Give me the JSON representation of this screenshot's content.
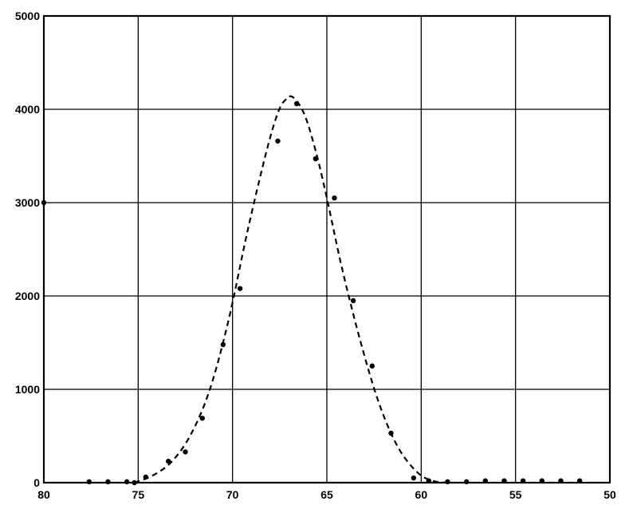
{
  "chart_data": {
    "type": "scatter",
    "title": "",
    "xlabel": "",
    "ylabel": "",
    "xlim": [
      80,
      50
    ],
    "ylim": [
      0,
      5000
    ],
    "x_reversed": true,
    "grid": true,
    "legend": "none",
    "x_ticks": [
      {
        "value": 80,
        "label": "80"
      },
      {
        "value": 75,
        "label": "75"
      },
      {
        "value": 70,
        "label": "70"
      },
      {
        "value": 65,
        "label": "65"
      },
      {
        "value": 60,
        "label": "60"
      },
      {
        "value": 55,
        "label": "55"
      },
      {
        "value": 50,
        "label": "50"
      }
    ],
    "y_ticks": [
      {
        "value": 0,
        "label": "0"
      },
      {
        "value": 1000,
        "label": "1000"
      },
      {
        "value": 2000,
        "label": "2000"
      },
      {
        "value": 3000,
        "label": "3000"
      },
      {
        "value": 4000,
        "label": "4000"
      },
      {
        "value": 5000,
        "label": "5000"
      }
    ],
    "series": [
      {
        "style": "points",
        "color": "#000000",
        "points": [
          {
            "x": 77.6,
            "y": 10
          },
          {
            "x": 76.6,
            "y": 10
          },
          {
            "x": 75.6,
            "y": 10
          },
          {
            "x": 75.2,
            "y": 0
          },
          {
            "x": 74.6,
            "y": 60
          },
          {
            "x": 73.4,
            "y": 230
          },
          {
            "x": 72.5,
            "y": 330
          },
          {
            "x": 71.6,
            "y": 690
          },
          {
            "x": 70.5,
            "y": 1480
          },
          {
            "x": 69.6,
            "y": 2080
          },
          {
            "x": 67.6,
            "y": 3660
          },
          {
            "x": 66.6,
            "y": 4060
          },
          {
            "x": 65.6,
            "y": 3470
          },
          {
            "x": 64.6,
            "y": 3050
          },
          {
            "x": 63.6,
            "y": 1950
          },
          {
            "x": 62.6,
            "y": 1250
          },
          {
            "x": 61.6,
            "y": 530
          },
          {
            "x": 60.4,
            "y": 50
          },
          {
            "x": 59.6,
            "y": 20
          },
          {
            "x": 58.6,
            "y": 10
          },
          {
            "x": 57.6,
            "y": 10
          },
          {
            "x": 56.6,
            "y": 20
          },
          {
            "x": 55.6,
            "y": 20
          },
          {
            "x": 54.6,
            "y": 20
          },
          {
            "x": 53.6,
            "y": 20
          },
          {
            "x": 52.6,
            "y": 20
          },
          {
            "x": 51.6,
            "y": 20
          },
          {
            "x": 80.0,
            "y": 3000
          }
        ]
      },
      {
        "style": "dashed-curve",
        "color": "#000000",
        "points": [
          {
            "x": 75.2,
            "y": 0
          },
          {
            "x": 74.2,
            "y": 80
          },
          {
            "x": 73.2,
            "y": 230
          },
          {
            "x": 72.2,
            "y": 520
          },
          {
            "x": 71.2,
            "y": 1000
          },
          {
            "x": 70.2,
            "y": 1750
          },
          {
            "x": 69.2,
            "y": 2700
          },
          {
            "x": 68.2,
            "y": 3550
          },
          {
            "x": 67.6,
            "y": 3960
          },
          {
            "x": 67.2,
            "y": 4100
          },
          {
            "x": 66.8,
            "y": 4130
          },
          {
            "x": 66.2,
            "y": 3950
          },
          {
            "x": 65.6,
            "y": 3560
          },
          {
            "x": 65.0,
            "y": 3050
          },
          {
            "x": 64.2,
            "y": 2300
          },
          {
            "x": 63.2,
            "y": 1500
          },
          {
            "x": 62.2,
            "y": 830
          },
          {
            "x": 61.2,
            "y": 370
          },
          {
            "x": 60.2,
            "y": 110
          },
          {
            "x": 59.4,
            "y": 20
          },
          {
            "x": 58.6,
            "y": 0
          }
        ]
      }
    ]
  }
}
